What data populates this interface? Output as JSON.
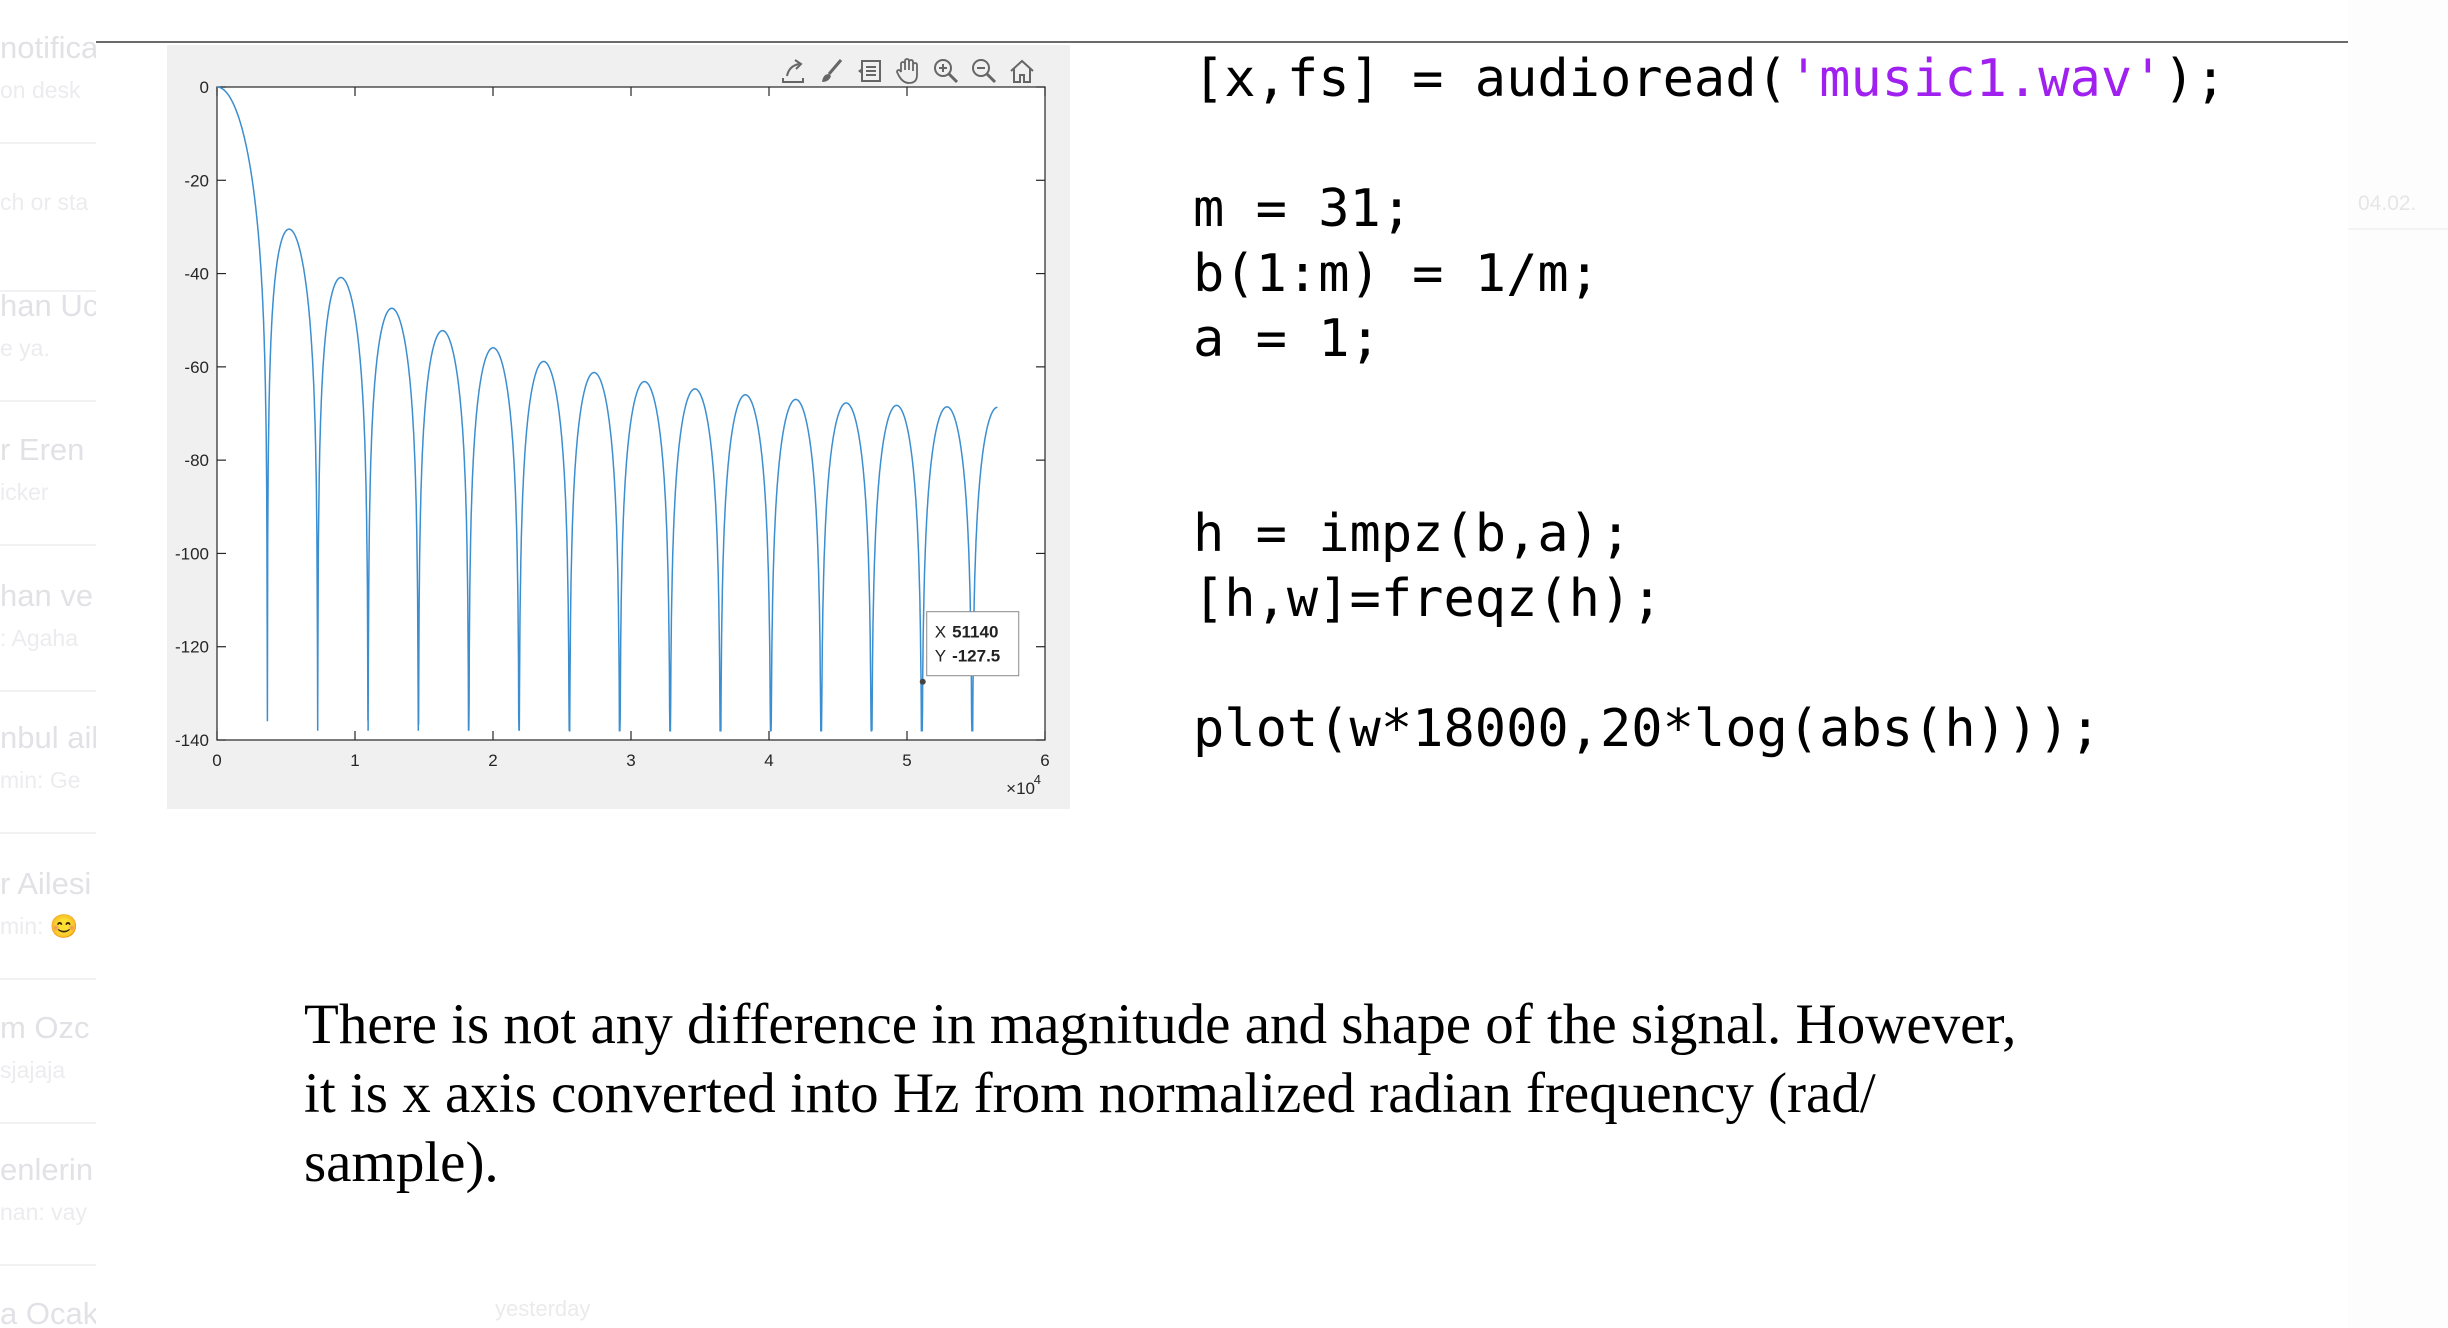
{
  "sidebar_chats": [
    {
      "title": "notifica",
      "subtitle": "on desk"
    },
    {
      "title": "",
      "subtitle": "ch or sta"
    },
    {
      "title": "han Uc",
      "subtitle": "e ya."
    },
    {
      "title": "r Eren",
      "subtitle": "icker"
    },
    {
      "title": "han ve",
      "subtitle": ": Agaha"
    },
    {
      "title": "nbul ail",
      "subtitle": "min: Ge"
    },
    {
      "title": "r Ailesi",
      "subtitle": "min: 😊"
    },
    {
      "title": "m Ozc",
      "subtitle": "sjajaja"
    },
    {
      "title": "enlerin",
      "subtitle": "nan: vay"
    },
    {
      "title": "a Ocak",
      "subtitle": ""
    }
  ],
  "right_faded": [
    "04.02."
  ],
  "yesterday_label": "yesterday",
  "figure": {
    "toolbar_icons": [
      "export-icon",
      "brush-icon",
      "datatips-icon",
      "pan-icon",
      "zoom-in-icon",
      "zoom-out-icon",
      "home-icon"
    ],
    "datatip": {
      "x_label": "X",
      "x_value": "51140",
      "y_label": "Y",
      "y_value": "-127.5"
    },
    "x_exponent_base": "×10",
    "x_exponent_power": "4"
  },
  "chart_data": {
    "type": "line",
    "title": "",
    "xlabel": "",
    "ylabel": "",
    "xlim": [
      0,
      60000
    ],
    "ylim": [
      -140,
      0
    ],
    "x_ticks": [
      0,
      1,
      2,
      3,
      4,
      5,
      6
    ],
    "x_tick_multiplier": 10000,
    "y_ticks": [
      0,
      -20,
      -40,
      -60,
      -80,
      -100,
      -120,
      -140
    ],
    "grid": false,
    "line_color": "#3b8ed0",
    "series": [
      {
        "description": "20*log(|H(w)|) of 31-tap moving average, w*18000",
        "x_max": 56549,
        "nulls_x": [
          3649,
          7297,
          10946,
          14594,
          18243,
          21892,
          25540,
          29189,
          32837,
          36486,
          40135,
          43783,
          47432,
          51080,
          54729
        ],
        "lobe_peaks": [
          {
            "x": 5473,
            "y": -31
          },
          {
            "x": 9122,
            "y": -41
          },
          {
            "x": 12770,
            "y": -48
          },
          {
            "x": 16419,
            "y": -52
          },
          {
            "x": 20067,
            "y": -56
          },
          {
            "x": 23716,
            "y": -59
          },
          {
            "x": 27365,
            "y": -61
          },
          {
            "x": 31013,
            "y": -63
          },
          {
            "x": 34662,
            "y": -65
          },
          {
            "x": 38310,
            "y": -66
          },
          {
            "x": 41959,
            "y": -67
          },
          {
            "x": 45608,
            "y": -68
          },
          {
            "x": 49256,
            "y": -69
          },
          {
            "x": 52905,
            "y": -70
          }
        ],
        "end_value": -69.5
      }
    ]
  },
  "code_lines": [
    {
      "pre": "[x,fs] = audioread(",
      "str": "'music1.wav'",
      "post": ");"
    },
    {
      "pre": "",
      "str": "",
      "post": ""
    },
    {
      "pre": "m = 31;",
      "str": "",
      "post": ""
    },
    {
      "pre": "b(1:m) = 1/m;",
      "str": "",
      "post": ""
    },
    {
      "pre": "a = 1;",
      "str": "",
      "post": ""
    },
    {
      "pre": "h = impz(b,a);",
      "str": "",
      "post": ""
    },
    {
      "pre": "[h,w]=freqz(h);",
      "str": "",
      "post": ""
    },
    {
      "pre": "plot(w*18000,20*log(abs(h)));",
      "str": "",
      "post": ""
    }
  ],
  "colors": {
    "string": "#a020f0",
    "axes_bg": "#ffffff",
    "figure_bg": "#f0f0f0"
  },
  "paragraph_lines": [
    "There is not any difference in magnitude and shape of the signal. However,",
    "it is x axis converted into Hz from normalized radian frequency (rad/",
    "sample)."
  ]
}
